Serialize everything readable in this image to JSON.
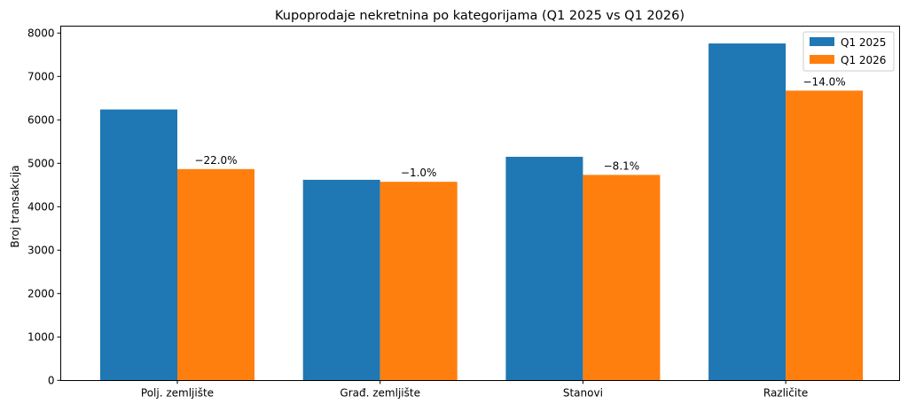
{
  "chart_data": {
    "type": "bar",
    "title": "Kupoprodaje nekretnina po kategorijama (Q1 2025 vs Q1 2026)",
    "xlabel": "",
    "ylabel": "Broj transakcija",
    "categories": [
      "Polj. zemljište",
      "Građ. zemljište",
      "Stanovi",
      "Različite"
    ],
    "series": [
      {
        "name": "Q1 2025",
        "color": "#1f77b4",
        "values": [
          6240,
          4620,
          5150,
          7760
        ]
      },
      {
        "name": "Q1 2026",
        "color": "#ff7f0e",
        "values": [
          4867,
          4574,
          4733,
          6674
        ]
      }
    ],
    "annotations": [
      "−22.0%",
      "−1.0%",
      "−8.1%",
      "−14.0%"
    ],
    "ylim": [
      0,
      8000
    ],
    "yticks": [
      0,
      1000,
      2000,
      3000,
      4000,
      5000,
      6000,
      7000,
      8000
    ],
    "grid": false,
    "legend_position": "top-right"
  }
}
